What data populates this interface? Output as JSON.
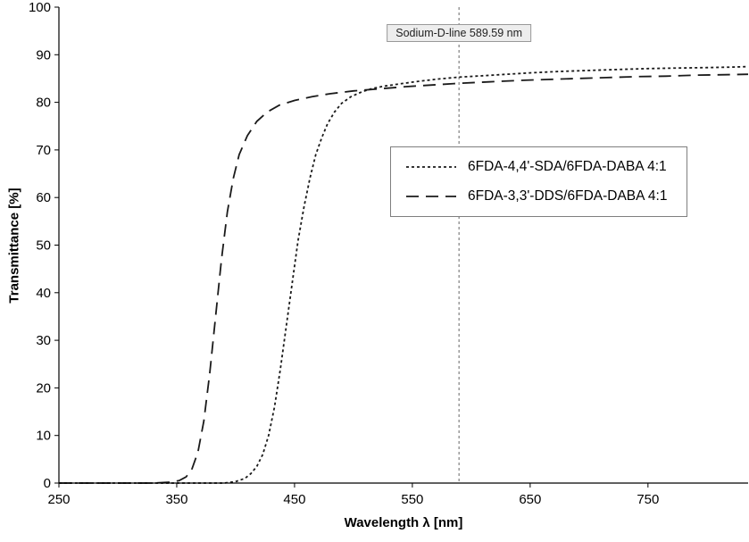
{
  "chart_data": {
    "type": "line",
    "title": "",
    "xlabel": "Wavelength λ [nm]",
    "ylabel": "Transmittance [%]",
    "xlim": [
      250,
      835
    ],
    "ylim": [
      0,
      100
    ],
    "xticks": [
      250,
      350,
      450,
      550,
      650,
      750
    ],
    "yticks": [
      0,
      10,
      20,
      30,
      40,
      50,
      60,
      70,
      80,
      90,
      100
    ],
    "grid": false,
    "background_color": "#ffffff",
    "axis_color": "#000000",
    "legend_position": "inside-center-right",
    "annotation": {
      "label": "Sodium-D-line 589.59 nm",
      "x_nm": 589.59,
      "line_style": "vertical-dotted",
      "line_color": "#666666",
      "box_background": "#ededed",
      "box_border": "#999999"
    },
    "series": [
      {
        "name": "6FDA-4,4'-SDA/6FDA-DABA 4:1",
        "color": "#1a1a1a",
        "dash": "short",
        "x": [
          250,
          300,
          350,
          390,
          400,
          408,
          413,
          418,
          423,
          428,
          433,
          438,
          443,
          448,
          453,
          458,
          463,
          468,
          473,
          478,
          484,
          490,
          498,
          507,
          516,
          526,
          540,
          555,
          572,
          589.59,
          610,
          630,
          650,
          675,
          700,
          725,
          750,
          775,
          800,
          820,
          835
        ],
        "y": [
          0,
          0,
          0,
          0,
          0.3,
          1,
          2,
          3.5,
          6,
          10,
          16,
          24,
          33,
          42,
          51,
          58,
          64,
          69,
          72.5,
          75.5,
          78,
          79.8,
          81.2,
          82.2,
          82.9,
          83.4,
          83.9,
          84.4,
          84.9,
          85.3,
          85.6,
          85.9,
          86.2,
          86.5,
          86.7,
          86.9,
          87.1,
          87.2,
          87.3,
          87.4,
          87.5
        ]
      },
      {
        "name": "6FDA-3,3'-DDS/6FDA-DABA 4:1",
        "color": "#1a1a1a",
        "dash": "long",
        "x": [
          250,
          300,
          330,
          345,
          352,
          358,
          363,
          368,
          373,
          378,
          383,
          388,
          393,
          398,
          403,
          410,
          418,
          427,
          437,
          450,
          465,
          480,
          500,
          520,
          545,
          570,
          589.59,
          615,
          640,
          665,
          690,
          715,
          740,
          765,
          790,
          815,
          835
        ],
        "y": [
          0,
          0,
          0,
          0.2,
          0.5,
          1.3,
          3,
          6.5,
          13,
          23,
          35,
          47,
          57,
          64,
          69,
          73,
          76,
          78,
          79.4,
          80.4,
          81.2,
          81.8,
          82.4,
          82.8,
          83.3,
          83.7,
          84,
          84.3,
          84.6,
          84.8,
          85,
          85.2,
          85.4,
          85.5,
          85.7,
          85.8,
          85.9
        ]
      }
    ]
  }
}
